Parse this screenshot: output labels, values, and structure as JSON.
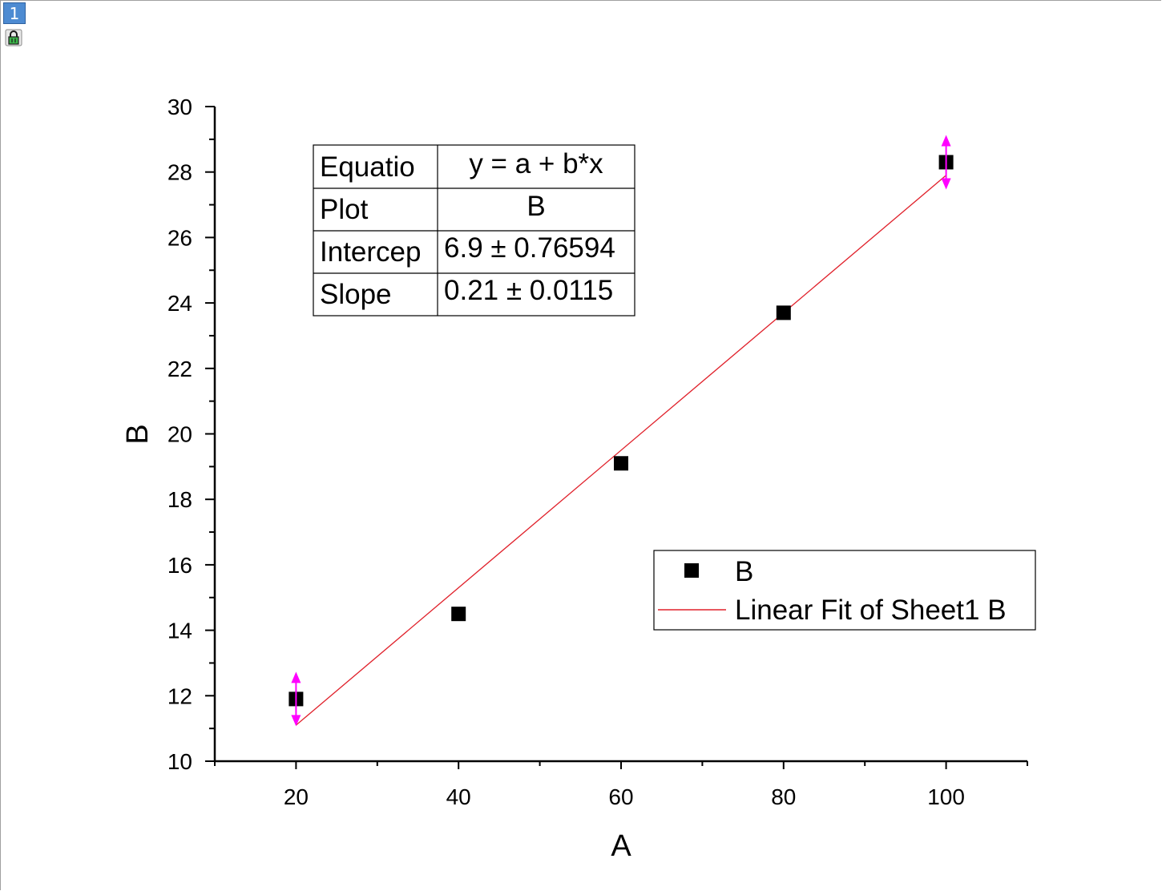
{
  "window": {
    "layer_number": "1",
    "lock_icon": "lock-icon"
  },
  "fit_table": {
    "rows": [
      {
        "label": "Equatio",
        "value": "y = a + b*x"
      },
      {
        "label": "Plot",
        "value": "B"
      },
      {
        "label": "Intercep",
        "value": "6.9 ± 0.76594"
      },
      {
        "label": "Slope",
        "value": "0.21 ± 0.0115"
      }
    ]
  },
  "legend": {
    "entries": [
      {
        "label": "B",
        "marker": "square",
        "color": "#000000"
      },
      {
        "label": "Linear Fit of Sheet1 B",
        "marker": "line",
        "color": "#e0202a"
      }
    ]
  },
  "chart_data": {
    "type": "scatter",
    "title": "",
    "xlabel": "A",
    "ylabel": "B",
    "xlim": [
      10,
      110
    ],
    "ylim": [
      10,
      30
    ],
    "x_ticks": [
      20,
      40,
      60,
      80,
      100
    ],
    "y_ticks": [
      10,
      12,
      14,
      16,
      18,
      20,
      22,
      24,
      26,
      28,
      30
    ],
    "series": [
      {
        "name": "B",
        "type": "scatter",
        "marker": "square",
        "color": "#000000",
        "x": [
          20,
          40,
          60,
          80,
          100
        ],
        "y": [
          11.9,
          14.5,
          19.1,
          23.7,
          28.3
        ]
      },
      {
        "name": "Linear Fit of Sheet1 B",
        "type": "line",
        "color": "#e0202a",
        "intercept": 6.9,
        "slope": 0.21,
        "x": [
          20,
          100
        ],
        "y": [
          11.1,
          27.9
        ]
      }
    ],
    "selection_handles_color": "#ff00ff",
    "grid": false,
    "legend_position": "bottom-right"
  }
}
